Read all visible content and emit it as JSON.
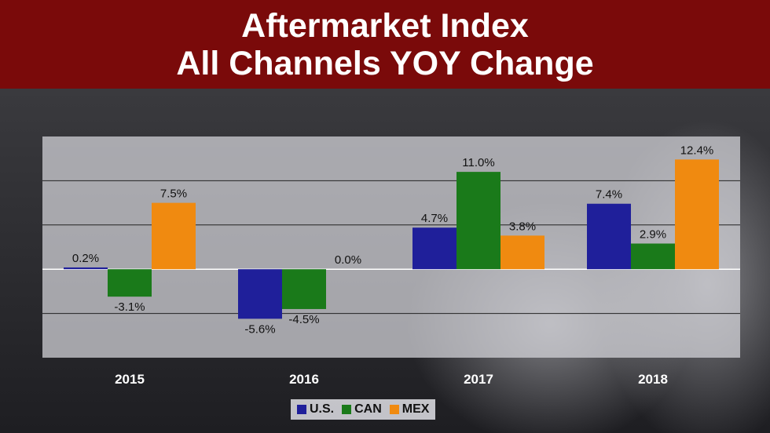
{
  "title": {
    "line1": "Aftermarket Index",
    "line2": "All Channels YOY Change"
  },
  "chart_data": {
    "type": "bar",
    "categories": [
      "2015",
      "2016",
      "2017",
      "2018"
    ],
    "series": [
      {
        "name": "U.S.",
        "color": "#1f1f9a",
        "values": [
          0.2,
          -5.6,
          4.7,
          7.4
        ],
        "labels": [
          "0.2%",
          "-5.6%",
          "4.7%",
          "7.4%"
        ]
      },
      {
        "name": "CAN",
        "color": "#1a7a1a",
        "values": [
          -3.1,
          -4.5,
          11.0,
          2.9
        ],
        "labels": [
          "-3.1%",
          "-4.5%",
          "11.0%",
          "2.9%"
        ]
      },
      {
        "name": "MEX",
        "color": "#f08a10",
        "values": [
          7.5,
          0.0,
          3.8,
          12.4
        ],
        "labels": [
          "7.5%",
          "0.0%",
          "3.8%",
          "12.4%"
        ]
      }
    ],
    "ylim": [
      -10,
      15
    ],
    "grid": true,
    "legend_position": "bottom"
  }
}
